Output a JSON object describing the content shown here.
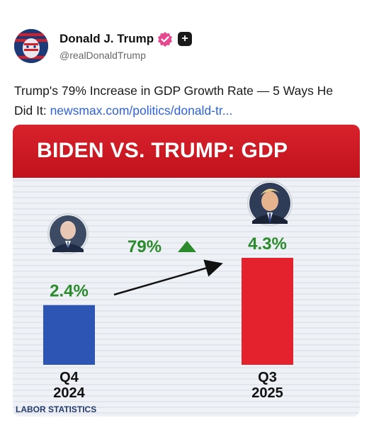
{
  "post": {
    "author_name": "Donald J. Trump",
    "handle": "@realDonaldTrump",
    "text_before_link": "Trump's 79% Increase in GDP Growth Rate — 5 Ways He Did It: ",
    "link_text": "newsmax.com/politics/donald-tr..."
  },
  "icons": {
    "verified": "verified-badge-icon",
    "follow": "plus-icon"
  },
  "colors": {
    "banner": "#c8161f",
    "bar_left": "#2d55b3",
    "bar_right": "#e3222d",
    "increase_text": "#2a8a2c",
    "link": "#2f62d6"
  },
  "chart_data": {
    "type": "bar",
    "title": "BIDEN VS. TRUMP: GDP",
    "categories": [
      "Q4\n2024",
      "Q3\n2025"
    ],
    "values": [
      2.4,
      4.3
    ],
    "value_labels": [
      "2.4%",
      "4.3%"
    ],
    "annotation": "79%",
    "source": "LABOR STATISTICS",
    "ylim": [
      0,
      4.3
    ]
  }
}
